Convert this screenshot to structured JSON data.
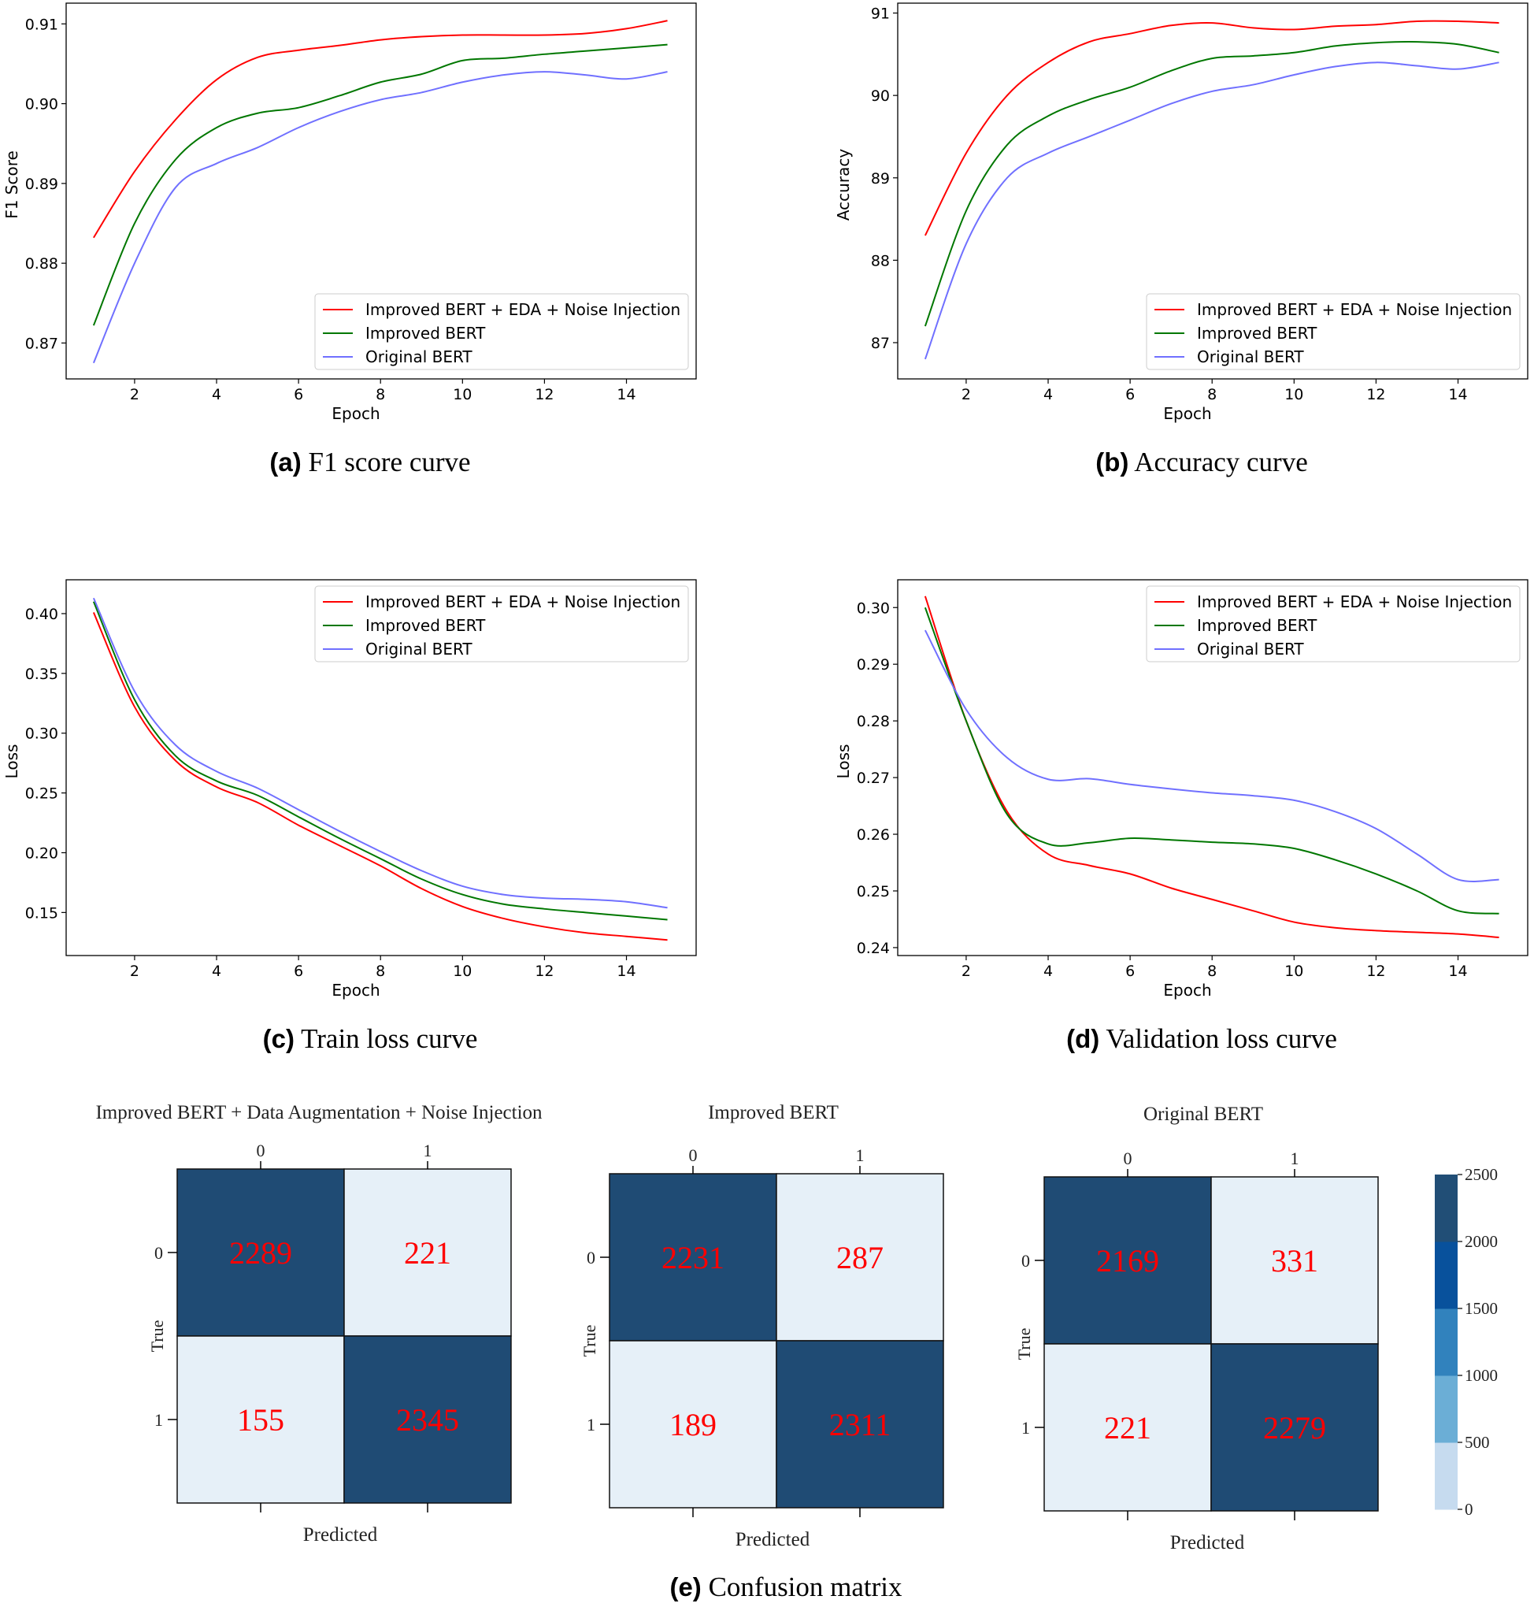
{
  "chart_data": [
    {
      "type": "line",
      "caption_label": "(a)",
      "caption": "F1 score curve",
      "xlabel": "Epoch",
      "ylabel": "F1 Score",
      "xlim": [
        0.33,
        15.7
      ],
      "ylim": [
        0.8655,
        0.9126
      ],
      "xticks": [
        2,
        4,
        6,
        8,
        10,
        12,
        14
      ],
      "yticks": [
        0.87,
        0.88,
        0.89,
        0.9,
        0.91
      ],
      "ytick_labels": [
        "0.87",
        "0.88",
        "0.89",
        "0.90",
        "0.91"
      ],
      "legend_position": "lower-right",
      "x": [
        1,
        2,
        3,
        4,
        5,
        6,
        7,
        8,
        9,
        10,
        11,
        12,
        13,
        14,
        15
      ],
      "series": [
        {
          "name": "Improved BERT + EDA + Noise Injection",
          "color": "#ff0000",
          "values": [
            0.8832,
            0.8915,
            0.898,
            0.903,
            0.9058,
            0.9067,
            0.9073,
            0.908,
            0.9084,
            0.9086,
            0.9086,
            0.9086,
            0.9088,
            0.9094,
            0.9104
          ]
        },
        {
          "name": "Improved BERT",
          "color": "#007700",
          "values": [
            0.8722,
            0.885,
            0.893,
            0.897,
            0.8988,
            0.8995,
            0.901,
            0.9027,
            0.9037,
            0.9054,
            0.9057,
            0.9062,
            0.9066,
            0.907,
            0.9074
          ]
        },
        {
          "name": "Original BERT",
          "color": "#7070ff",
          "values": [
            0.8675,
            0.88,
            0.8895,
            0.8925,
            0.8945,
            0.897,
            0.899,
            0.9005,
            0.9014,
            0.9027,
            0.9036,
            0.904,
            0.9036,
            0.9031,
            0.904
          ]
        }
      ]
    },
    {
      "type": "line",
      "caption_label": "(b)",
      "caption": "Accuracy curve",
      "xlabel": "Epoch",
      "ylabel": "Accuracy",
      "xlim": [
        0.33,
        15.7
      ],
      "ylim": [
        86.56,
        91.12
      ],
      "xticks": [
        2,
        4,
        6,
        8,
        10,
        12,
        14
      ],
      "yticks": [
        87,
        88,
        89,
        90,
        91
      ],
      "ytick_labels": [
        "87",
        "88",
        "89",
        "90",
        "91"
      ],
      "legend_position": "lower-right",
      "x": [
        1,
        2,
        3,
        4,
        5,
        6,
        7,
        8,
        9,
        10,
        11,
        12,
        13,
        14,
        15
      ],
      "series": [
        {
          "name": "Improved BERT + EDA + Noise Injection",
          "color": "#ff0000",
          "values": [
            88.3,
            89.3,
            90.0,
            90.4,
            90.65,
            90.75,
            90.85,
            90.88,
            90.82,
            90.8,
            90.84,
            90.86,
            90.9,
            90.9,
            90.88
          ]
        },
        {
          "name": "Improved BERT",
          "color": "#007700",
          "values": [
            87.2,
            88.6,
            89.4,
            89.75,
            89.95,
            90.1,
            90.3,
            90.45,
            90.48,
            90.52,
            90.6,
            90.64,
            90.65,
            90.62,
            90.52
          ]
        },
        {
          "name": "Original BERT",
          "color": "#7070ff",
          "values": [
            86.8,
            88.2,
            89.0,
            89.3,
            89.5,
            89.7,
            89.9,
            90.05,
            90.13,
            90.25,
            90.35,
            90.4,
            90.36,
            90.32,
            90.4
          ]
        }
      ]
    },
    {
      "type": "line",
      "caption_label": "(c)",
      "caption": "Train loss curve",
      "xlabel": "Epoch",
      "ylabel": "Loss",
      "xlim": [
        0.33,
        15.7
      ],
      "ylim": [
        0.114,
        0.4283
      ],
      "xticks": [
        2,
        4,
        6,
        8,
        10,
        12,
        14
      ],
      "yticks": [
        0.15,
        0.2,
        0.25,
        0.3,
        0.35,
        0.4
      ],
      "ytick_labels": [
        "0.15",
        "0.20",
        "0.25",
        "0.30",
        "0.35",
        "0.40"
      ],
      "legend_position": "upper-right",
      "x": [
        1,
        2,
        3,
        4,
        5,
        6,
        7,
        8,
        9,
        10,
        11,
        12,
        13,
        14,
        15
      ],
      "series": [
        {
          "name": "Improved BERT + EDA + Noise Injection",
          "color": "#ff0000",
          "values": [
            0.401,
            0.322,
            0.277,
            0.255,
            0.242,
            0.223,
            0.206,
            0.189,
            0.17,
            0.155,
            0.145,
            0.138,
            0.133,
            0.13,
            0.127
          ]
        },
        {
          "name": "Improved BERT",
          "color": "#007700",
          "values": [
            0.41,
            0.328,
            0.281,
            0.26,
            0.248,
            0.23,
            0.212,
            0.195,
            0.178,
            0.165,
            0.157,
            0.153,
            0.15,
            0.147,
            0.144
          ]
        },
        {
          "name": "Original BERT",
          "color": "#7070ff",
          "values": [
            0.413,
            0.335,
            0.29,
            0.268,
            0.254,
            0.236,
            0.218,
            0.201,
            0.185,
            0.172,
            0.165,
            0.162,
            0.161,
            0.159,
            0.154
          ]
        }
      ]
    },
    {
      "type": "line",
      "caption_label": "(d)",
      "caption": "Validation loss curve",
      "xlabel": "Epoch",
      "ylabel": "Loss",
      "xlim": [
        0.33,
        15.7
      ],
      "ylim": [
        0.2386,
        0.3049
      ],
      "xticks": [
        2,
        4,
        6,
        8,
        10,
        12,
        14
      ],
      "yticks": [
        0.24,
        0.25,
        0.26,
        0.27,
        0.28,
        0.29,
        0.3
      ],
      "ytick_labels": [
        "0.24",
        "0.25",
        "0.26",
        "0.27",
        "0.28",
        "0.29",
        "0.30"
      ],
      "legend_position": "upper-right",
      "x": [
        1,
        2,
        3,
        4,
        5,
        6,
        7,
        8,
        9,
        10,
        11,
        12,
        13,
        14,
        15
      ],
      "series": [
        {
          "name": "Improved BERT + EDA + Noise Injection",
          "color": "#ff0000",
          "values": [
            0.302,
            0.28,
            0.264,
            0.2565,
            0.2545,
            0.253,
            0.2505,
            0.2485,
            0.2465,
            0.2445,
            0.2435,
            0.243,
            0.2427,
            0.2424,
            0.2418
          ]
        },
        {
          "name": "Improved BERT",
          "color": "#007700",
          "values": [
            0.3,
            0.28,
            0.2635,
            0.2583,
            0.2585,
            0.2593,
            0.259,
            0.2586,
            0.2583,
            0.2575,
            0.2555,
            0.253,
            0.25,
            0.2465,
            0.246
          ]
        },
        {
          "name": "Original BERT",
          "color": "#7070ff",
          "values": [
            0.296,
            0.282,
            0.2735,
            0.2697,
            0.2698,
            0.2688,
            0.268,
            0.2673,
            0.2668,
            0.266,
            0.264,
            0.261,
            0.2565,
            0.252,
            0.252
          ]
        }
      ]
    },
    {
      "type": "heatmap",
      "caption_label": "(e)",
      "caption": "Confusion matrix",
      "xlabel": "Predicted",
      "ylabel": "True",
      "labels": [
        "0",
        "1"
      ],
      "matrices": [
        {
          "title": "Improved BERT + Data Augmentation + Noise Injection",
          "values": [
            [
              2289,
              221
            ],
            [
              155,
              2345
            ]
          ]
        },
        {
          "title": "Improved BERT",
          "values": [
            [
              2231,
              287
            ],
            [
              189,
              2311
            ]
          ]
        },
        {
          "title": "Original BERT",
          "values": [
            [
              2169,
              331
            ],
            [
              221,
              2279
            ]
          ]
        }
      ],
      "colorbar": {
        "ticks": [
          "0",
          "500",
          "1000",
          "1500",
          "2000",
          "2500"
        ],
        "range": [
          0,
          2500
        ],
        "bands": [
          "#c6dbef",
          "#6baed6",
          "#3182bd",
          "#08519c",
          "#214e76"
        ]
      },
      "cell_colors": {
        "high": "#1f4b74",
        "low": "#e6f0f8"
      },
      "value_color": "#ff0000"
    }
  ]
}
